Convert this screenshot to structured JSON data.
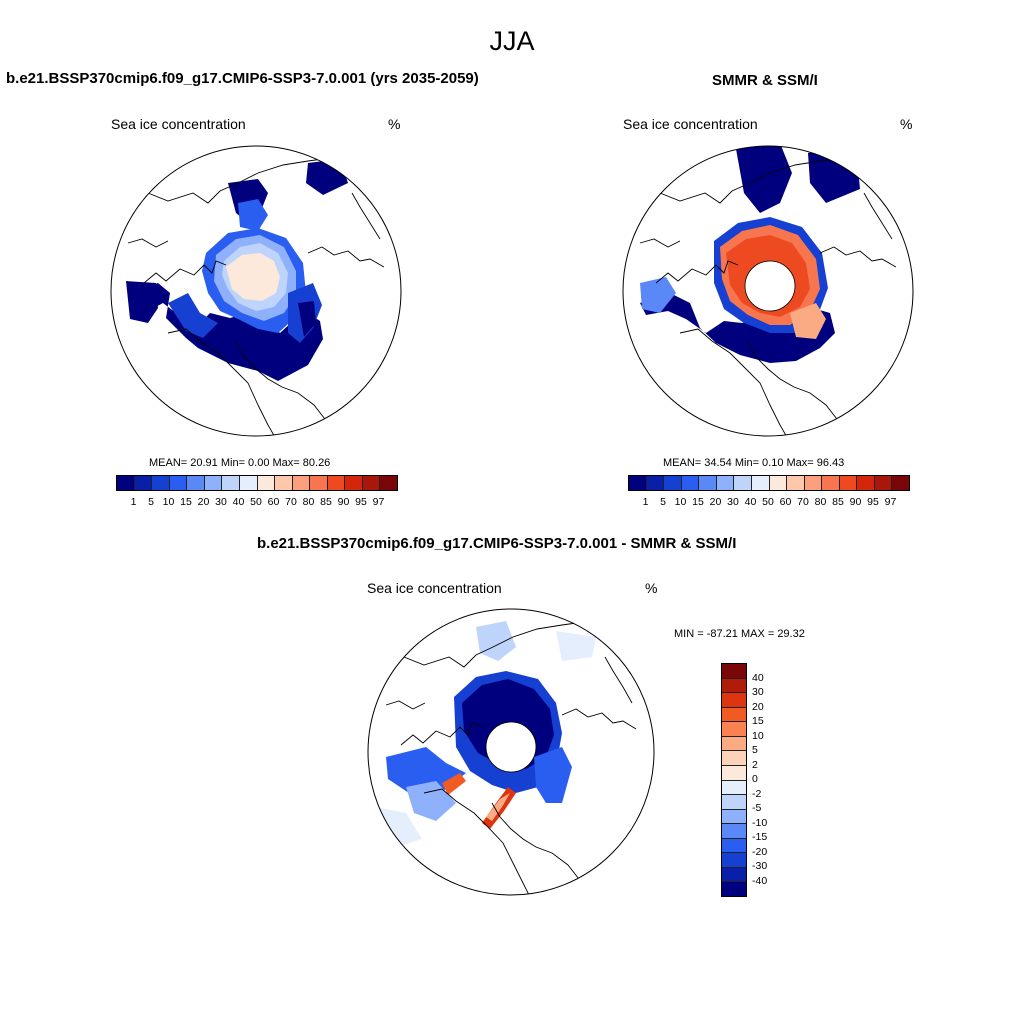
{
  "title": "JJA",
  "colors": {
    "conc": [
      "#00007e",
      "#0a1fa8",
      "#1540d2",
      "#2a5ef0",
      "#5a88f7",
      "#8fb0fa",
      "#bfd4fb",
      "#e4eefd",
      "#fde9dc",
      "#fcc7aa",
      "#fba07c",
      "#f8764f",
      "#ee4a22",
      "#d3260b",
      "#a8170a",
      "#7a0707"
    ],
    "diff": [
      "#7a0707",
      "#b01c08",
      "#dd3510",
      "#f25a23",
      "#f98250",
      "#fbab83",
      "#fcd3b9",
      "#fde9dc",
      "#e4eefd",
      "#bfd4fb",
      "#8fb0fa",
      "#5a88f7",
      "#2a5ef0",
      "#1540d2",
      "#0a1fa8",
      "#00007e"
    ],
    "land_line": "#000000",
    "ocean": "#ffffff"
  },
  "panel_model": {
    "title": "b.e21.BSSP370cmip6.f09_g17.CMIP6-SSP3-7.0.001 (yrs 2035-2059)",
    "variable": "Sea ice concentration",
    "units": "%",
    "stats": "MEAN=  20.91  Min=   0.00  Max=  80.26"
  },
  "panel_obs": {
    "title": "SMMR & SSM/I",
    "variable": "Sea ice concentration",
    "units": "%",
    "stats": "MEAN=  34.54  Min=   0.10  Max=  96.43"
  },
  "panel_diff": {
    "title": "b.e21.BSSP370cmip6.f09_g17.CMIP6-SSP3-7.0.001 - SMMR & SSM/I",
    "variable": "Sea ice concentration",
    "units": "%",
    "stats": "MIN = -87.21 MAX =  29.32"
  },
  "colorbar_conc": {
    "labels": [
      "1",
      "5",
      "10",
      "15",
      "20",
      "30",
      "40",
      "50",
      "60",
      "70",
      "80",
      "85",
      "90",
      "95",
      "97"
    ]
  },
  "colorbar_diff": {
    "labels": [
      "40",
      "30",
      "20",
      "15",
      "10",
      "5",
      "2",
      "0",
      "-2",
      "-5",
      "-10",
      "-15",
      "-20",
      "-30",
      "-40"
    ]
  }
}
